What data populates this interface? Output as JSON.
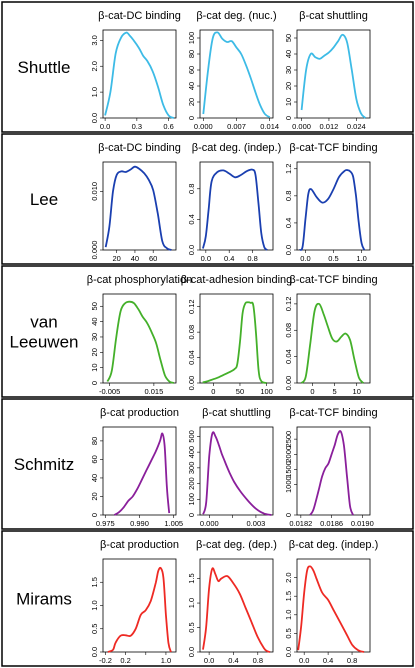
{
  "colors": {
    "shuttle": "#3dbbe6",
    "lee": "#1a3fb0",
    "van_leeuwen": "#44b02a",
    "schmitz": "#8a1f9b",
    "mirams": "#ee2a24"
  },
  "chart_data": [
    {
      "model": "Shuttle",
      "color": "#3dbbe6",
      "panels": [
        {
          "type": "line",
          "title": "β-cat-DC binding",
          "xlim": [
            -0.02,
            0.67
          ],
          "ylim": [
            0,
            3.4
          ],
          "xticks": [
            0.0,
            0.3,
            0.6
          ],
          "xtick_labels": [
            "0.0",
            "0.3",
            "0.6"
          ],
          "yticks": [
            0.0,
            1.0,
            2.0,
            3.0
          ],
          "ytick_labels": [
            "0.0",
            "1.0",
            "2.0",
            "3.0"
          ],
          "x": [
            0.0,
            0.05,
            0.1,
            0.15,
            0.2,
            0.23,
            0.27,
            0.32,
            0.36,
            0.4,
            0.45,
            0.5,
            0.55,
            0.6,
            0.65
          ],
          "y": [
            0.1,
            1.0,
            2.5,
            3.1,
            3.3,
            3.2,
            3.0,
            2.7,
            2.4,
            2.2,
            1.8,
            1.2,
            0.5,
            0.1,
            0.0
          ]
        },
        {
          "type": "line",
          "title": "β-cat deg. (nuc.)",
          "xlim": [
            -0.0007,
            0.0147
          ],
          "ylim": [
            0,
            110
          ],
          "xticks": [
            0.0,
            0.007,
            0.014
          ],
          "xtick_labels": [
            "0.000",
            "0.007",
            "0.014"
          ],
          "yticks": [
            0,
            20,
            40,
            60,
            80,
            100
          ],
          "ytick_labels": [
            "0",
            "20",
            "40",
            "60",
            "80",
            "100"
          ],
          "x": [
            0.0,
            0.001,
            0.002,
            0.003,
            0.004,
            0.005,
            0.006,
            0.007,
            0.008,
            0.009,
            0.01,
            0.011,
            0.012,
            0.013,
            0.014
          ],
          "y": [
            5,
            60,
            100,
            107,
            99,
            95,
            96,
            88,
            80,
            66,
            50,
            32,
            16,
            5,
            1
          ]
        },
        {
          "type": "line",
          "title": "β-cat shuttling",
          "xlim": [
            -0.002,
            0.03
          ],
          "ylim": [
            0,
            55
          ],
          "xticks": [
            0.0,
            0.012,
            0.024
          ],
          "xtick_labels": [
            "0.000",
            "0.012",
            "0.024"
          ],
          "yticks": [
            0,
            10,
            20,
            30,
            40,
            50
          ],
          "ytick_labels": [
            "0",
            "10",
            "20",
            "30",
            "40",
            "50"
          ],
          "x": [
            0.0,
            0.002,
            0.004,
            0.006,
            0.008,
            0.01,
            0.012,
            0.014,
            0.016,
            0.018,
            0.02,
            0.022,
            0.024,
            0.026,
            0.028
          ],
          "y": [
            5,
            30,
            40,
            38,
            37,
            39,
            41,
            44,
            48,
            52,
            47,
            30,
            12,
            3,
            0
          ]
        }
      ]
    },
    {
      "model": "Lee",
      "color": "#1a3fb0",
      "panels": [
        {
          "type": "line",
          "title": "β-cat-DC binding",
          "xlim": [
            5,
            85
          ],
          "ylim": [
            0,
            0.015
          ],
          "xticks": [
            20,
            40,
            60
          ],
          "xtick_labels": [
            "20",
            "40",
            "60"
          ],
          "yticks": [
            0.0,
            0.01
          ],
          "ytick_labels": [
            "0.000",
            "0.010"
          ],
          "x": [
            8,
            12,
            16,
            20,
            25,
            30,
            35,
            40,
            45,
            50,
            55,
            60,
            65,
            70,
            75,
            80
          ],
          "y": [
            0.0005,
            0.004,
            0.01,
            0.0128,
            0.0134,
            0.0133,
            0.0137,
            0.0142,
            0.0138,
            0.0131,
            0.012,
            0.0102,
            0.0062,
            0.0015,
            0.0003,
            0.0
          ]
        },
        {
          "type": "line",
          "title": "β-cat deg. (indep.)",
          "xlim": [
            -0.1,
            1.15
          ],
          "ylim": [
            0,
            1.15
          ],
          "xticks": [
            0.0,
            0.4,
            0.8
          ],
          "xtick_labels": [
            "0.0",
            "0.4",
            "0.8"
          ],
          "yticks": [
            0.0,
            0.4,
            0.8
          ],
          "ytick_labels": [
            "0.0",
            "0.4",
            "0.8"
          ],
          "x": [
            -0.05,
            0.0,
            0.05,
            0.1,
            0.2,
            0.3,
            0.4,
            0.5,
            0.6,
            0.7,
            0.8,
            0.85,
            0.9,
            0.95,
            1.0,
            1.05
          ],
          "y": [
            0.02,
            0.18,
            0.55,
            0.9,
            1.02,
            1.04,
            1.0,
            0.95,
            0.98,
            1.03,
            1.05,
            0.98,
            0.62,
            0.22,
            0.04,
            0.0
          ]
        },
        {
          "type": "line",
          "title": "β-cat-TCF binding",
          "xlim": [
            -0.15,
            1.15
          ],
          "ylim": [
            0,
            1.3
          ],
          "xticks": [
            0.0,
            0.5,
            1.0
          ],
          "xtick_labels": [
            "0.0",
            "0.5",
            "1.0"
          ],
          "yticks": [
            0.0,
            0.4,
            0.8,
            1.2
          ],
          "ytick_labels": [
            "0.0",
            "0.4",
            "0.8",
            "1.2"
          ],
          "x": [
            -0.1,
            -0.05,
            0.0,
            0.05,
            0.1,
            0.2,
            0.3,
            0.4,
            0.5,
            0.6,
            0.7,
            0.75,
            0.8,
            0.85,
            0.9,
            0.95,
            1.0,
            1.05
          ],
          "y": [
            0.0,
            0.05,
            0.45,
            0.82,
            0.9,
            0.78,
            0.7,
            0.75,
            0.9,
            1.08,
            1.17,
            1.18,
            1.16,
            1.08,
            0.8,
            0.4,
            0.1,
            0.0
          ]
        }
      ]
    },
    {
      "model": "van Leeuwen",
      "color": "#44b02a",
      "panels": [
        {
          "type": "line",
          "title": "β-cat phosphorylation",
          "xlim": [
            -0.008,
            0.025
          ],
          "ylim": [
            0,
            58
          ],
          "xticks": [
            -0.005,
            0.015
          ],
          "xtick_labels": [
            "-0.005",
            "0.015"
          ],
          "yticks": [
            0,
            10,
            20,
            30,
            40,
            50
          ],
          "ytick_labels": [
            "0",
            "10",
            "20",
            "30",
            "40",
            "50"
          ],
          "x": [
            -0.006,
            -0.004,
            -0.002,
            0.0,
            0.002,
            0.004,
            0.006,
            0.008,
            0.01,
            0.012,
            0.014,
            0.016,
            0.018,
            0.02,
            0.022,
            0.024
          ],
          "y": [
            1,
            8,
            30,
            47,
            52,
            53,
            52,
            48,
            43,
            39,
            33,
            26,
            15,
            5,
            1,
            0
          ]
        },
        {
          "type": "line",
          "title": "β-cat-adhesion binding",
          "xlim": [
            -25,
            112
          ],
          "ylim": [
            0,
            0.14
          ],
          "xticks": [
            0,
            50,
            100
          ],
          "xtick_labels": [
            "0",
            "50",
            "100"
          ],
          "yticks": [
            0.0,
            0.04,
            0.08,
            0.12
          ],
          "ytick_labels": [
            "0.00",
            "0.04",
            "0.08",
            "0.12"
          ],
          "x": [
            -20,
            -10,
            0,
            10,
            20,
            30,
            40,
            45,
            50,
            55,
            60,
            65,
            70,
            75,
            80,
            85,
            90,
            100
          ],
          "y": [
            0.001,
            0.003,
            0.006,
            0.009,
            0.013,
            0.017,
            0.022,
            0.03,
            0.065,
            0.11,
            0.125,
            0.127,
            0.126,
            0.122,
            0.08,
            0.02,
            0.003,
            0.0
          ]
        },
        {
          "type": "line",
          "title": "β-cat-TCF binding",
          "xlim": [
            -3.5,
            13
          ],
          "ylim": [
            0,
            0.135
          ],
          "xticks": [
            0,
            5,
            10
          ],
          "xtick_labels": [
            "0",
            "5",
            "10"
          ],
          "yticks": [
            0.0,
            0.04,
            0.08,
            0.12
          ],
          "ytick_labels": [
            "0.00",
            "0.04",
            "0.08",
            "0.12"
          ],
          "x": [
            -2.5,
            -1.5,
            -0.5,
            0.5,
            1.5,
            2.5,
            3.5,
            4.5,
            5.5,
            6.5,
            7.5,
            8.5,
            9.5,
            10.5,
            11.5
          ],
          "y": [
            0.0,
            0.01,
            0.06,
            0.11,
            0.12,
            0.105,
            0.085,
            0.067,
            0.063,
            0.07,
            0.075,
            0.065,
            0.035,
            0.008,
            0.0
          ]
        }
      ]
    },
    {
      "model": "Schmitz",
      "color": "#8a1f9b",
      "panels": [
        {
          "type": "line",
          "title": "β-cat production",
          "xlim": [
            0.974,
            1.006
          ],
          "ylim": [
            0,
            95
          ],
          "xticks": [
            0.975,
            0.99,
            1.005
          ],
          "xtick_labels": [
            "0.975",
            "0.990",
            "1.005"
          ],
          "yticks": [
            0,
            20,
            40,
            60,
            80
          ],
          "ytick_labels": [
            "0",
            "20",
            "40",
            "60",
            "80"
          ],
          "x": [
            0.979,
            0.981,
            0.983,
            0.985,
            0.987,
            0.989,
            0.991,
            0.993,
            0.995,
            0.997,
            0.999,
            1.0,
            1.001,
            1.002,
            1.003
          ],
          "y": [
            0,
            3,
            8,
            15,
            20,
            28,
            38,
            48,
            58,
            68,
            80,
            88,
            75,
            30,
            2
          ]
        },
        {
          "type": "line",
          "title": "β-cat shuttling",
          "xlim": [
            -0.0006,
            0.0041
          ],
          "ylim": [
            0,
            560
          ],
          "xticks": [
            0.0,
            0.0015,
            0.003
          ],
          "xtick_labels": [
            "0.000",
            "",
            "0.003"
          ],
          "yticks": [
            0,
            100,
            200,
            300,
            400,
            500
          ],
          "ytick_labels": [
            "0",
            "100",
            "200",
            "300",
            "400",
            "500"
          ],
          "x": [
            -0.0004,
            -0.0002,
            0.0,
            0.0002,
            0.0004,
            0.0006,
            0.0008,
            0.001,
            0.0013,
            0.0016,
            0.002,
            0.0025,
            0.003,
            0.0035,
            0.004
          ],
          "y": [
            5,
            80,
            380,
            520,
            500,
            450,
            390,
            340,
            270,
            210,
            150,
            90,
            40,
            10,
            0
          ]
        },
        {
          "type": "line",
          "title": "β-cat-TCF binding",
          "xlim": [
            0.01815,
            0.0191
          ],
          "ylim": [
            0,
            2900
          ],
          "xticks": [
            0.0182,
            0.0186,
            0.019
          ],
          "xtick_labels": [
            "0.0182",
            "0.0186",
            "0.0190"
          ],
          "yticks": [
            0,
            1000,
            1500,
            2000,
            2500
          ],
          "ytick_labels": [
            "0",
            "1000",
            "1500",
            "2000",
            "2500"
          ],
          "x": [
            0.01832,
            0.01836,
            0.0184,
            0.01844,
            0.01848,
            0.01852,
            0.01856,
            0.0186,
            0.01864,
            0.01868,
            0.01872,
            0.01876,
            0.0188,
            0.01884,
            0.01888
          ],
          "y": [
            0,
            150,
            500,
            900,
            1300,
            1550,
            1700,
            2000,
            2300,
            2650,
            2750,
            2300,
            1300,
            300,
            0
          ]
        }
      ]
    },
    {
      "model": "Mirams",
      "color": "#ee2a24",
      "panels": [
        {
          "type": "line",
          "title": "β-cat production",
          "xlim": [
            -0.25,
            1.2
          ],
          "ylim": [
            0,
            2.0
          ],
          "xticks": [
            -0.2,
            0.2,
            0.6,
            1.0
          ],
          "xtick_labels": [
            "-0.2",
            "0.2",
            "",
            "1.0"
          ],
          "yticks": [
            0.0,
            0.5,
            1.0,
            1.5
          ],
          "ytick_labels": [
            "0.0",
            "0.5",
            "1.0",
            "1.5"
          ],
          "x": [
            -0.15,
            -0.05,
            0.0,
            0.1,
            0.2,
            0.3,
            0.4,
            0.5,
            0.6,
            0.7,
            0.8,
            0.85,
            0.9,
            0.95,
            1.0,
            1.05,
            1.1
          ],
          "y": [
            0.0,
            0.05,
            0.2,
            0.35,
            0.36,
            0.35,
            0.5,
            0.8,
            0.9,
            1.1,
            1.5,
            1.75,
            1.8,
            1.6,
            0.8,
            0.2,
            0.0
          ]
        },
        {
          "type": "line",
          "title": "β-cat deg. (dep.)",
          "xlim": [
            -0.15,
            1.05
          ],
          "ylim": [
            0,
            1.9
          ],
          "xticks": [
            0.0,
            0.4,
            0.8
          ],
          "xtick_labels": [
            "0.0",
            "0.4",
            "0.8"
          ],
          "yticks": [
            0.0,
            0.5,
            1.0,
            1.5
          ],
          "ytick_labels": [
            "0.0",
            "0.5",
            "1.0",
            "1.5"
          ],
          "x": [
            -0.1,
            -0.05,
            0.0,
            0.05,
            0.1,
            0.15,
            0.2,
            0.3,
            0.4,
            0.5,
            0.6,
            0.7,
            0.8,
            0.9,
            0.95,
            1.0
          ],
          "y": [
            0.05,
            0.5,
            1.3,
            1.7,
            1.6,
            1.45,
            1.5,
            1.55,
            1.4,
            1.2,
            0.9,
            0.6,
            0.3,
            0.08,
            0.02,
            0.0
          ]
        },
        {
          "type": "line",
          "title": "β-cat deg. (indep.)",
          "xlim": [
            -0.12,
            1.1
          ],
          "ylim": [
            0,
            2.5
          ],
          "xticks": [
            0.0,
            0.4,
            0.8
          ],
          "xtick_labels": [
            "0.0",
            "0.4",
            "0.8"
          ],
          "yticks": [
            0.0,
            0.5,
            1.0,
            1.5,
            2.0
          ],
          "ytick_labels": [
            "0.0",
            "0.5",
            "1.0",
            "1.5",
            "2.0"
          ],
          "x": [
            -0.1,
            -0.05,
            0.0,
            0.05,
            0.1,
            0.15,
            0.2,
            0.3,
            0.4,
            0.5,
            0.6,
            0.7,
            0.8,
            0.9,
            1.0
          ],
          "y": [
            0.05,
            0.7,
            1.6,
            2.2,
            2.3,
            2.2,
            2.0,
            1.6,
            1.4,
            1.1,
            0.8,
            0.5,
            0.2,
            0.05,
            0.0
          ]
        }
      ]
    }
  ]
}
